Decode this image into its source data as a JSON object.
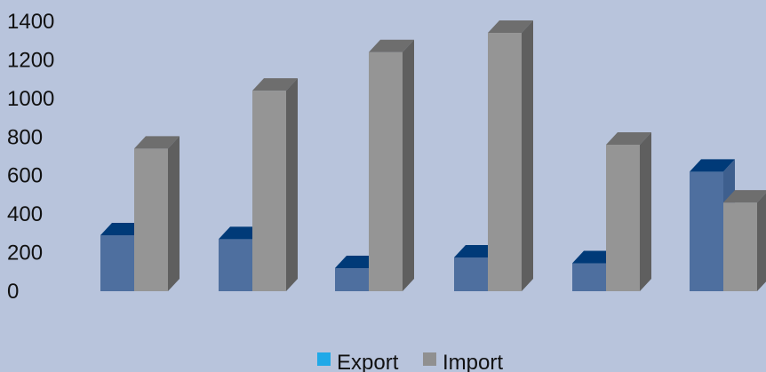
{
  "chart_data": {
    "type": "bar",
    "categories": [
      "",
      "",
      "",
      "",
      "",
      ""
    ],
    "series": [
      {
        "name": "Export",
        "values": [
          290,
          270,
          120,
          175,
          145,
          620
        ],
        "color": "#4e6f9f",
        "top_color": "#003a78",
        "side_color": "#3e5f8e"
      },
      {
        "name": "Import",
        "values": [
          740,
          1040,
          1240,
          1340,
          760,
          460
        ],
        "color": "#959595",
        "top_color": "#6e6e6e",
        "side_color": "#5f5f5f"
      }
    ],
    "y_ticks": [
      "0",
      "200",
      "400",
      "600",
      "800",
      "1000",
      "1200",
      "1400"
    ],
    "ylim": [
      0,
      1400
    ],
    "grid": false,
    "legend": {
      "position": "bottom",
      "items": [
        {
          "label": "Export",
          "swatch": "#1fa9e8"
        },
        {
          "label": "Import",
          "swatch": "#909090"
        }
      ]
    },
    "background": "#b8c4dc"
  }
}
